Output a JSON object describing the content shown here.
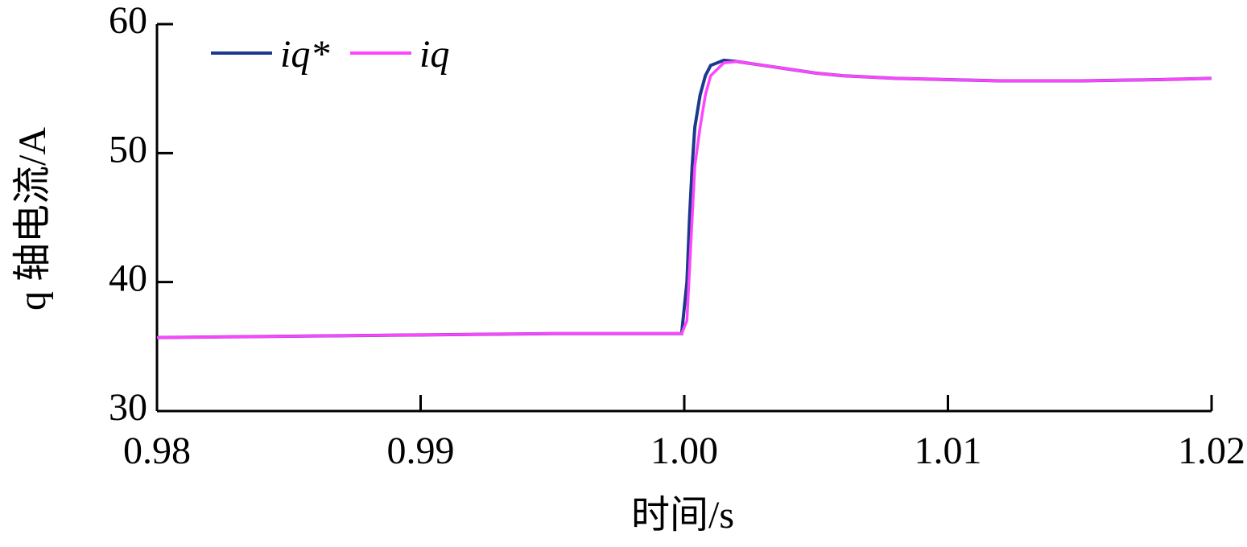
{
  "chart_data": {
    "type": "line",
    "xlabel": "时间/s",
    "ylabel": "q 轴电流/A",
    "xlim": [
      0.98,
      1.02
    ],
    "ylim": [
      30,
      60
    ],
    "xticks": [
      0.98,
      0.99,
      {
        "value": 1.0,
        "label": "1.00"
      },
      1.01,
      1.02
    ],
    "yticks": [
      30,
      40,
      50,
      60
    ],
    "grid": false,
    "legend": "upper left",
    "x": [
      0.98,
      0.985,
      0.99,
      0.995,
      0.9999,
      1.0001,
      1.0002,
      1.0003,
      1.0004,
      1.0006,
      1.0008,
      1.001,
      1.0015,
      1.002,
      1.003,
      1.004,
      1.005,
      1.006,
      1.008,
      1.01,
      1.012,
      1.015,
      1.018,
      1.02
    ],
    "series": [
      {
        "name": "iq*",
        "color": "#1a3a8c",
        "values": [
          35.7,
          35.8,
          35.9,
          36.0,
          36.0,
          40,
          45,
          49,
          52,
          54.5,
          56,
          56.8,
          57.2,
          57.1,
          56.8,
          56.5,
          56.2,
          56.0,
          55.8,
          55.7,
          55.6,
          55.6,
          55.7,
          55.8
        ]
      },
      {
        "name": "iq",
        "color": "#ff44ff",
        "values": [
          35.7,
          35.8,
          35.9,
          36.0,
          36.0,
          37,
          41,
          45,
          49,
          52,
          54.5,
          56,
          57,
          57.1,
          56.8,
          56.5,
          56.2,
          56.0,
          55.8,
          55.7,
          55.6,
          55.6,
          55.7,
          55.8
        ]
      }
    ]
  }
}
